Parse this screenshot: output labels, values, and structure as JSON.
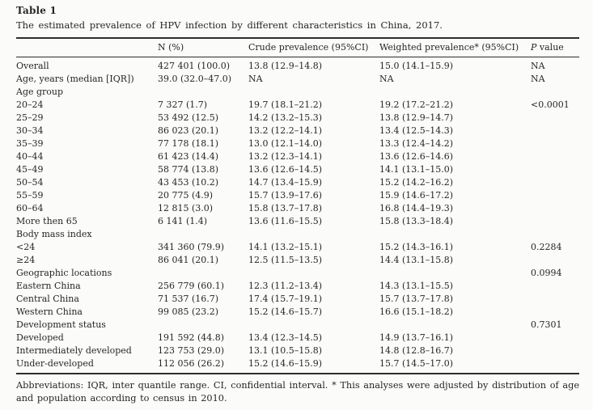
{
  "table": {
    "label": "Table 1",
    "caption": "The estimated prevalence of HPV infection by different characteristics in China, 2017.",
    "columns": [
      "",
      "N (%)",
      "Crude prevalence (95%CI)",
      "Weighted prevalence* (95%CI)",
      "P value"
    ],
    "rows": [
      {
        "label": "Overall",
        "n": "427 401 (100.0)",
        "crude": "13.8 (12.9–14.8)",
        "weighted": "15.0 (14.1–15.9)",
        "p": "NA"
      },
      {
        "label": "Age, years (median [IQR])",
        "n": "39.0 (32.0–47.0)",
        "crude": "NA",
        "weighted": "NA",
        "p": "NA"
      },
      {
        "label": "Age group",
        "n": "",
        "crude": "",
        "weighted": "",
        "p": ""
      },
      {
        "label": "20–24",
        "n": "7 327 (1.7)",
        "crude": "19.7 (18.1–21.2)",
        "weighted": "19.2 (17.2–21.2)",
        "p": "<0.0001"
      },
      {
        "label": "25–29",
        "n": "53 492 (12.5)",
        "crude": "14.2 (13.2–15.3)",
        "weighted": "13.8 (12.9–14.7)",
        "p": ""
      },
      {
        "label": "30–34",
        "n": "86 023 (20.1)",
        "crude": "13.2 (12.2–14.1)",
        "weighted": "13.4 (12.5–14.3)",
        "p": ""
      },
      {
        "label": "35–39",
        "n": "77 178 (18.1)",
        "crude": "13.0 (12.1–14.0)",
        "weighted": "13.3 (12.4–14.2)",
        "p": ""
      },
      {
        "label": "40–44",
        "n": "61 423 (14.4)",
        "crude": "13.2 (12.3–14.1)",
        "weighted": "13.6 (12.6–14.6)",
        "p": ""
      },
      {
        "label": "45–49",
        "n": "58 774 (13.8)",
        "crude": "13.6 (12.6–14.5)",
        "weighted": "14.1 (13.1–15.0)",
        "p": ""
      },
      {
        "label": "50–54",
        "n": "43 453 (10.2)",
        "crude": "14.7 (13.4–15.9)",
        "weighted": "15.2 (14.2–16.2)",
        "p": ""
      },
      {
        "label": "55–59",
        "n": "20 775 (4.9)",
        "crude": "15.7 (13.9–17.6)",
        "weighted": "15.9 (14.6–17.2)",
        "p": ""
      },
      {
        "label": "60–64",
        "n": "12 815 (3.0)",
        "crude": "15.8 (13.7–17.8)",
        "weighted": "16.8 (14.4–19.3)",
        "p": ""
      },
      {
        "label": "More then 65",
        "n": "6 141 (1.4)",
        "crude": "13.6 (11.6–15.5)",
        "weighted": "15.8 (13.3–18.4)",
        "p": ""
      },
      {
        "label": "Body mass index",
        "n": "",
        "crude": "",
        "weighted": "",
        "p": ""
      },
      {
        "label": "<24",
        "n": "341 360 (79.9)",
        "crude": "14.1 (13.2–15.1)",
        "weighted": "15.2 (14.3–16.1)",
        "p": "0.2284"
      },
      {
        "label": "≥24",
        "n": "86 041 (20.1)",
        "crude": "12.5 (11.5–13.5)",
        "weighted": "14.4 (13.1–15.8)",
        "p": ""
      },
      {
        "label": "Geographic locations",
        "n": "",
        "crude": "",
        "weighted": "",
        "p": "0.0994"
      },
      {
        "label": "Eastern China",
        "n": "256 779 (60.1)",
        "crude": "12.3 (11.2–13.4)",
        "weighted": "14.3 (13.1–15.5)",
        "p": ""
      },
      {
        "label": "Central China",
        "n": "71 537 (16.7)",
        "crude": "17.4 (15.7–19.1)",
        "weighted": "15.7 (13.7–17.8)",
        "p": ""
      },
      {
        "label": "Western China",
        "n": "99 085 (23.2)",
        "crude": "15.2 (14.6–15.7)",
        "weighted": "16.6 (15.1–18.2)",
        "p": ""
      },
      {
        "label": "Development status",
        "n": "",
        "crude": "",
        "weighted": "",
        "p": "0.7301"
      },
      {
        "label": "Developed",
        "n": "191 592 (44.8)",
        "crude": "13.4 (12.3–14.5)",
        "weighted": "14.9 (13.7–16.1)",
        "p": ""
      },
      {
        "label": "Intermediately developed",
        "n": "123 753 (29.0)",
        "crude": "13.1 (10.5–15.8)",
        "weighted": "14.8 (12.8–16.7)",
        "p": ""
      },
      {
        "label": "Under-developed",
        "n": "112 056 (26.2)",
        "crude": "15.2 (14.6–15.9)",
        "weighted": "15.7 (14.5–17.0)",
        "p": ""
      }
    ],
    "footnote": "Abbreviations: IQR, inter quantile range. CI, confidential interval. * This analyses were adjusted by distribution of age and population according to census in 2010."
  }
}
